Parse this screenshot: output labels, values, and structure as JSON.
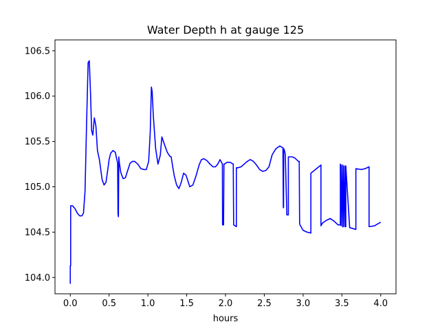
{
  "chart_data": {
    "type": "line",
    "title": "Water Depth h at gauge 125",
    "xlabel": "hours",
    "ylabel": "",
    "xlim": [
      -0.197,
      4.197
    ],
    "ylim": [
      103.82,
      106.62
    ],
    "xticks": [
      0.0,
      0.5,
      1.0,
      1.5,
      2.0,
      2.5,
      3.0,
      3.5,
      4.0
    ],
    "xtick_labels": [
      "0.0",
      "0.5",
      "1.0",
      "1.5",
      "2.0",
      "2.5",
      "3.0",
      "3.5",
      "4.0"
    ],
    "yticks": [
      104.0,
      104.5,
      105.0,
      105.5,
      106.0,
      106.5
    ],
    "ytick_labels": [
      "104.0",
      "104.5",
      "105.0",
      "105.5",
      "106.0",
      "106.5"
    ],
    "grid": false,
    "series": [
      {
        "color": "#0000ff",
        "x": [
          0.0,
          0.0,
          0.005,
          0.005,
          0.03,
          0.06,
          0.09,
          0.12,
          0.15,
          0.17,
          0.19,
          0.21,
          0.23,
          0.245,
          0.26,
          0.275,
          0.29,
          0.31,
          0.33,
          0.35,
          0.375,
          0.41,
          0.435,
          0.46,
          0.48,
          0.5,
          0.52,
          0.55,
          0.58,
          0.61,
          0.615,
          0.62,
          0.625,
          0.63,
          0.65,
          0.68,
          0.71,
          0.74,
          0.77,
          0.8,
          0.83,
          0.87,
          0.91,
          0.95,
          0.98,
          1.01,
          1.03,
          1.045,
          1.055,
          1.07,
          1.1,
          1.13,
          1.16,
          1.18,
          1.2,
          1.22,
          1.25,
          1.28,
          1.3,
          1.32,
          1.34,
          1.37,
          1.4,
          1.43,
          1.46,
          1.49,
          1.51,
          1.54,
          1.58,
          1.62,
          1.66,
          1.69,
          1.72,
          1.76,
          1.8,
          1.84,
          1.87,
          1.9,
          1.93,
          1.96,
          1.962,
          1.975,
          1.98,
          1.985,
          2.02,
          2.06,
          2.1,
          2.105,
          2.14,
          2.14,
          2.16,
          2.2,
          2.24,
          2.28,
          2.32,
          2.36,
          2.4,
          2.44,
          2.48,
          2.52,
          2.56,
          2.6,
          2.62,
          2.65,
          2.7,
          2.74,
          2.745,
          2.748,
          2.75,
          2.76,
          2.77,
          2.79,
          2.79,
          2.81,
          2.81,
          2.83,
          2.86,
          2.89,
          2.94,
          2.95,
          2.955,
          2.96,
          3.0,
          3.05,
          3.1,
          3.1,
          3.23,
          3.23,
          3.25,
          3.3,
          3.35,
          3.4,
          3.45,
          3.48,
          3.48,
          3.49,
          3.49,
          3.51,
          3.51,
          3.52,
          3.52,
          3.54,
          3.54,
          3.55,
          3.55,
          3.6,
          3.68,
          3.68,
          3.75,
          3.8,
          3.85,
          3.85,
          3.92,
          4.0
        ],
        "y": [
          103.93,
          104.13,
          104.13,
          104.79,
          104.79,
          104.76,
          104.71,
          104.68,
          104.68,
          104.71,
          104.95,
          105.7,
          106.37,
          106.39,
          106.05,
          105.62,
          105.57,
          105.76,
          105.67,
          105.4,
          105.3,
          105.08,
          105.02,
          105.05,
          105.17,
          105.3,
          105.37,
          105.4,
          105.38,
          105.26,
          104.7,
          104.67,
          105.33,
          105.28,
          105.16,
          105.09,
          105.1,
          105.18,
          105.26,
          105.28,
          105.28,
          105.25,
          105.2,
          105.19,
          105.19,
          105.28,
          105.6,
          106.1,
          106.05,
          105.78,
          105.42,
          105.25,
          105.35,
          105.55,
          105.5,
          105.45,
          105.38,
          105.34,
          105.33,
          105.22,
          105.12,
          105.02,
          104.98,
          105.05,
          105.15,
          105.13,
          105.08,
          105.0,
          105.02,
          105.12,
          105.24,
          105.3,
          105.31,
          105.29,
          105.25,
          105.22,
          105.22,
          105.25,
          105.3,
          105.25,
          104.58,
          104.58,
          105.25,
          105.25,
          105.27,
          105.27,
          105.25,
          104.58,
          104.56,
          105.21,
          105.21,
          105.22,
          105.25,
          105.28,
          105.3,
          105.28,
          105.24,
          105.19,
          105.17,
          105.18,
          105.22,
          105.35,
          105.38,
          105.42,
          105.45,
          105.43,
          104.77,
          104.77,
          105.42,
          105.4,
          105.36,
          104.72,
          104.69,
          104.69,
          105.33,
          105.33,
          105.33,
          105.32,
          105.28,
          105.28,
          104.6,
          104.58,
          104.52,
          104.5,
          104.49,
          105.15,
          105.24,
          104.57,
          104.6,
          104.63,
          104.65,
          104.62,
          104.58,
          104.58,
          105.25,
          104.57,
          105.24,
          104.56,
          105.24,
          104.56,
          105.23,
          104.56,
          105.23,
          104.56,
          105.23,
          104.55,
          104.53,
          105.2,
          105.19,
          105.2,
          105.22,
          104.56,
          104.57,
          104.61
        ]
      }
    ]
  }
}
